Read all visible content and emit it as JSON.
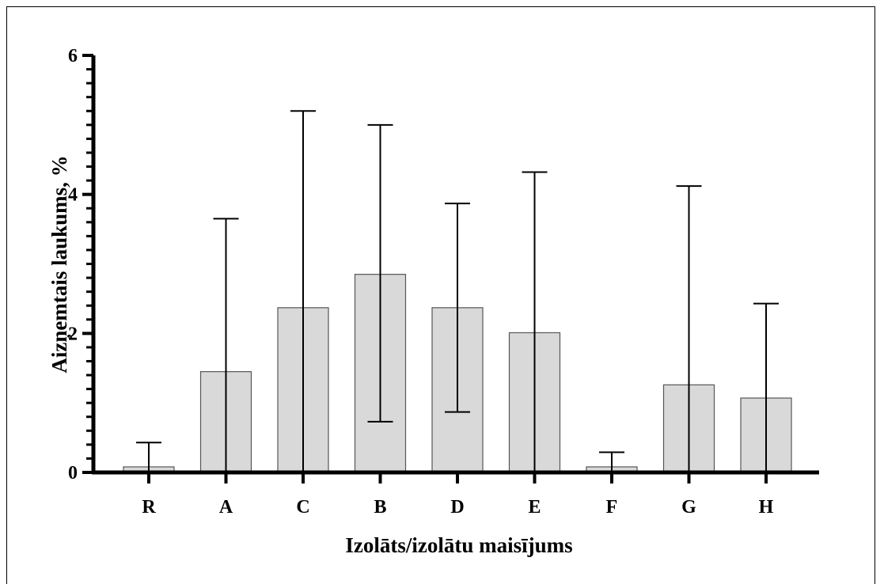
{
  "chart_data": {
    "type": "bar",
    "categories": [
      "R",
      "A",
      "C",
      "B",
      "D",
      "E",
      "F",
      "G",
      "H"
    ],
    "values": [
      0.08,
      1.45,
      2.37,
      2.85,
      2.37,
      2.01,
      0.08,
      1.26,
      1.07
    ],
    "error_upper": [
      0.43,
      3.65,
      5.2,
      5.0,
      3.87,
      4.32,
      0.29,
      4.12,
      2.43
    ],
    "error_lower": [
      0.0,
      0.0,
      0.0,
      0.73,
      0.87,
      0.0,
      0.0,
      0.0,
      0.0
    ],
    "ylim": [
      0,
      6
    ],
    "yticks": [
      "0",
      "2",
      "4",
      "6"
    ],
    "xlabel": "Izolāts/izolātu maisījums",
    "ylabel": "Aizņemtais laukums, %",
    "grid": false,
    "bar_color": "#d9d9d9",
    "bar_edge_color": "#555555"
  }
}
